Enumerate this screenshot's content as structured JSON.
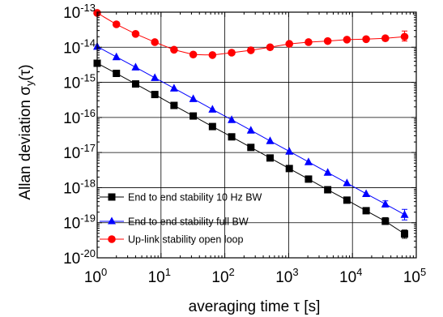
{
  "chart_data": {
    "type": "line",
    "xscale": "log",
    "yscale": "log",
    "xlim": [
      1,
      100000
    ],
    "ylim": [
      1e-20,
      1e-13
    ],
    "grid": true,
    "legend_position": "bottom-left",
    "xlabel": {
      "text": "averaging time τ [s]"
    },
    "ylabel": {
      "main": "Allan deviation σ",
      "sub": "y",
      "tail": "(τ)"
    },
    "x_ticks": [
      {
        "value": 1,
        "base": "10",
        "exp": "0"
      },
      {
        "value": 10,
        "base": "10",
        "exp": "1"
      },
      {
        "value": 100,
        "base": "10",
        "exp": "2"
      },
      {
        "value": 1000,
        "base": "10",
        "exp": "3"
      },
      {
        "value": 10000,
        "base": "10",
        "exp": "4"
      },
      {
        "value": 100000,
        "base": "10",
        "exp": "5"
      }
    ],
    "y_ticks": [
      {
        "value": 1e-20,
        "base": "10",
        "exp": "-20"
      },
      {
        "value": 1e-19,
        "base": "10",
        "exp": "-19"
      },
      {
        "value": 1e-18,
        "base": "10",
        "exp": "-18"
      },
      {
        "value": 1e-17,
        "base": "10",
        "exp": "-17"
      },
      {
        "value": 1e-16,
        "base": "10",
        "exp": "-16"
      },
      {
        "value": 1e-15,
        "base": "10",
        "exp": "-15"
      },
      {
        "value": 1e-14,
        "base": "10",
        "exp": "-14"
      },
      {
        "value": 1e-13,
        "base": "10",
        "exp": "-13"
      }
    ],
    "series": [
      {
        "name": "End to end stability 10 Hz BW",
        "color": "#000000",
        "marker": "square",
        "x": [
          1,
          2,
          4,
          8,
          16,
          32,
          64,
          128,
          256,
          512,
          1024,
          2048,
          4096,
          8192,
          16384,
          32768,
          65536
        ],
        "y": [
          3.5e-15,
          1.8e-15,
          9e-16,
          4.5e-16,
          2.2e-16,
          1.1e-16,
          5.5e-17,
          2.8e-17,
          1.4e-17,
          7e-18,
          3.5e-18,
          1.75e-18,
          8.7e-19,
          4.4e-19,
          2.2e-19,
          1.1e-19,
          4.8e-20
        ],
        "err_upper": [
          null,
          null,
          null,
          null,
          null,
          null,
          null,
          null,
          null,
          null,
          null,
          null,
          null,
          null,
          null,
          1.4e-19,
          6.2e-20
        ],
        "err_lower": [
          null,
          null,
          null,
          null,
          null,
          null,
          null,
          null,
          null,
          null,
          null,
          null,
          null,
          null,
          null,
          9e-20,
          3.6e-20
        ]
      },
      {
        "name": "End to end stability full BW",
        "color": "#0000ff",
        "marker": "triangle",
        "x": [
          1,
          2,
          4,
          8,
          16,
          32,
          64,
          128,
          256,
          512,
          1024,
          2048,
          4096,
          8192,
          16384,
          32768,
          65536
        ],
        "y": [
          1.05e-14,
          5.3e-15,
          2.7e-15,
          1.35e-15,
          6.8e-16,
          3.4e-16,
          1.7e-16,
          8.6e-17,
          4.3e-17,
          2.15e-17,
          1.08e-17,
          5.4e-18,
          2.7e-18,
          1.35e-18,
          6.7e-19,
          3.4e-19,
          1.7e-19
        ],
        "err_upper": [
          null,
          null,
          null,
          null,
          null,
          null,
          null,
          null,
          null,
          null,
          null,
          null,
          null,
          null,
          null,
          4.2e-19,
          2.4e-19
        ],
        "err_lower": [
          null,
          null,
          null,
          null,
          null,
          null,
          null,
          null,
          null,
          null,
          null,
          null,
          null,
          null,
          null,
          2.8e-19,
          1.2e-19
        ]
      },
      {
        "name": "Up-link stability open loop",
        "color": "#ff0000",
        "marker": "circle",
        "x": [
          1,
          2,
          4,
          8,
          16,
          32,
          64,
          128,
          256,
          512,
          1024,
          2048,
          4096,
          8192,
          16384,
          32768,
          65536
        ],
        "y": [
          9.5e-14,
          4.5e-14,
          2.4e-14,
          1.4e-14,
          8.5e-15,
          6.2e-15,
          6e-15,
          7e-15,
          8.2e-15,
          1e-14,
          1.25e-14,
          1.4e-14,
          1.5e-14,
          1.65e-14,
          1.7e-14,
          1.8e-14,
          2e-14
        ],
        "err_upper": [
          null,
          null,
          null,
          null,
          null,
          null,
          null,
          null,
          null,
          null,
          null,
          null,
          null,
          null,
          null,
          2.1e-14,
          2.9e-14
        ],
        "err_lower": [
          null,
          null,
          null,
          null,
          null,
          null,
          null,
          null,
          null,
          null,
          null,
          null,
          null,
          null,
          null,
          1.6e-14,
          1.5e-14
        ]
      }
    ]
  }
}
